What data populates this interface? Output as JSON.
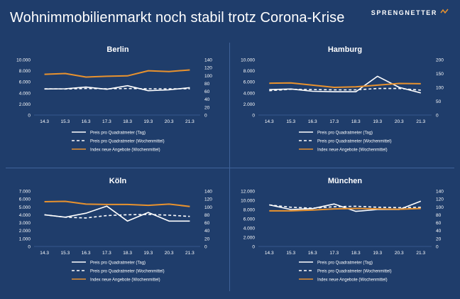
{
  "page": {
    "title": "Wohnimmobilienmarkt noch stabil trotz Corona-Krise",
    "brand": "SPRENGNETTER"
  },
  "colors": {
    "background": "#1f3d6b",
    "line_white": "#ffffff",
    "line_orange": "#e8922e",
    "grid": "#3f6299"
  },
  "chart_data": [
    {
      "type": "line",
      "title": "Berlin",
      "categories": [
        "14.3",
        "15.3",
        "16.3",
        "17.3",
        "18.3",
        "19.3",
        "20.3",
        "21.3"
      ],
      "y_left": {
        "range": [
          0,
          10000
        ],
        "ticks": [
          "0",
          "2.000",
          "4.000",
          "6.000",
          "8.000",
          "10.000"
        ]
      },
      "y_right": {
        "range": [
          0,
          140
        ],
        "ticks": [
          "0",
          "20",
          "40",
          "60",
          "80",
          "100",
          "120",
          "140"
        ]
      },
      "series": [
        {
          "name": "Preis pro Quadratmeter (Tag)",
          "axis": "left",
          "style": "solid",
          "color": "#ffffff",
          "values": [
            4700,
            4750,
            5050,
            4650,
            5300,
            4400,
            4550,
            4950
          ]
        },
        {
          "name": "Preis pro Quadratmeter (Wochenmittel)",
          "axis": "left",
          "style": "dashed",
          "color": "#ffffff",
          "values": [
            4750,
            4700,
            4800,
            4750,
            4800,
            4750,
            4750,
            4750
          ]
        },
        {
          "name": "Index neue Angebote (Wochenmittel)",
          "axis": "right",
          "style": "solid",
          "color": "#e8922e",
          "values": [
            103,
            105,
            96,
            98,
            99,
            112,
            110,
            114
          ]
        }
      ]
    },
    {
      "type": "line",
      "title": "Hamburg",
      "categories": [
        "14.3",
        "15.3",
        "16.3",
        "17.3",
        "18.3",
        "19.3",
        "20.3",
        "21.3"
      ],
      "y_left": {
        "range": [
          0,
          10000
        ],
        "ticks": [
          "0",
          "2.000",
          "4.000",
          "6.000",
          "8.000",
          "10.000"
        ]
      },
      "y_right": {
        "range": [
          0,
          200
        ],
        "ticks": [
          "0",
          "50",
          "100",
          "150",
          "200"
        ]
      },
      "series": [
        {
          "name": "Preis pro Quadratmeter (Tag)",
          "axis": "left",
          "style": "solid",
          "color": "#ffffff",
          "values": [
            4600,
            4700,
            4300,
            4200,
            4200,
            7000,
            5000,
            4000
          ]
        },
        {
          "name": "Preis pro Quadratmeter (Wochenmittel)",
          "axis": "left",
          "style": "dashed",
          "color": "#ffffff",
          "values": [
            4400,
            4650,
            4600,
            4550,
            4550,
            4800,
            4800,
            4500
          ]
        },
        {
          "name": "Index neue Angebote (Wochenmittel)",
          "axis": "right",
          "style": "solid",
          "color": "#e8922e",
          "values": [
            115,
            116,
            108,
            100,
            102,
            108,
            114,
            113
          ]
        }
      ]
    },
    {
      "type": "line",
      "title": "Köln",
      "categories": [
        "14.3",
        "15.3",
        "16.3",
        "17.3",
        "18.3",
        "19.3",
        "20.3",
        "21.3"
      ],
      "y_left": {
        "range": [
          0,
          7000
        ],
        "ticks": [
          "0",
          "1.000",
          "2.000",
          "3.000",
          "4.000",
          "5.000",
          "6.000",
          "7.000"
        ]
      },
      "y_right": {
        "range": [
          0,
          140
        ],
        "ticks": [
          "0",
          "20",
          "40",
          "60",
          "80",
          "100",
          "120",
          "140"
        ]
      },
      "series": [
        {
          "name": "Preis pro Quadratmeter (Tag)",
          "axis": "left",
          "style": "solid",
          "color": "#ffffff",
          "values": [
            4000,
            3700,
            4200,
            5100,
            3200,
            4300,
            3200,
            3200
          ]
        },
        {
          "name": "Preis pro Quadratmeter (Wochenmittel)",
          "axis": "left",
          "style": "dashed",
          "color": "#ffffff",
          "values": [
            4000,
            3700,
            3600,
            3900,
            4000,
            4050,
            3950,
            3800
          ]
        },
        {
          "name": "Index neue Angebote (Wochenmittel)",
          "axis": "right",
          "style": "solid",
          "color": "#e8922e",
          "values": [
            113,
            114,
            107,
            106,
            106,
            104,
            107,
            101
          ]
        }
      ]
    },
    {
      "type": "line",
      "title": "München",
      "categories": [
        "14.3",
        "15.3",
        "16.3",
        "17.3",
        "18.3",
        "19.3",
        "20.3",
        "21.3"
      ],
      "y_left": {
        "range": [
          0,
          12000
        ],
        "ticks": [
          "0",
          "2.000",
          "4.000",
          "6.000",
          "8.000",
          "10.000",
          "12.000"
        ]
      },
      "y_right": {
        "range": [
          0,
          140
        ],
        "ticks": [
          "0",
          "20",
          "40",
          "60",
          "80",
          "100",
          "120",
          "140"
        ]
      },
      "series": [
        {
          "name": "Preis pro Quadratmeter (Tag)",
          "axis": "left",
          "style": "solid",
          "color": "#ffffff",
          "values": [
            9000,
            8000,
            8200,
            9200,
            7600,
            8000,
            8000,
            9800
          ]
        },
        {
          "name": "Preis pro Quadratmeter (Wochenmittel)",
          "axis": "left",
          "style": "dashed",
          "color": "#ffffff",
          "values": [
            9000,
            8500,
            8300,
            8600,
            8700,
            8500,
            8400,
            8500
          ]
        },
        {
          "name": "Index neue Angebote (Wochenmittel)",
          "axis": "right",
          "style": "solid",
          "color": "#e8922e",
          "values": [
            90,
            90,
            92,
            95,
            96,
            95,
            94,
            96
          ]
        }
      ]
    }
  ]
}
